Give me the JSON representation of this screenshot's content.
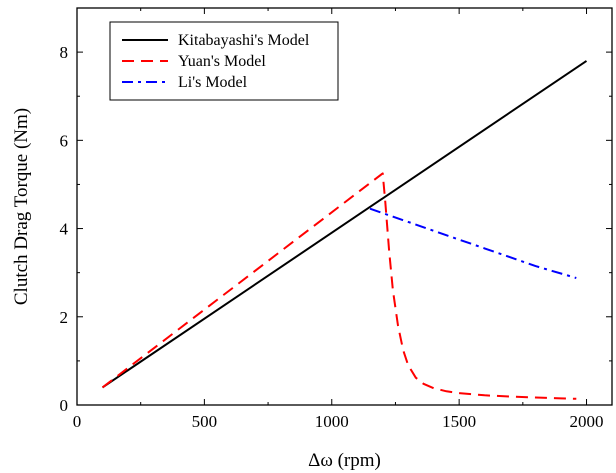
{
  "chart_data": {
    "type": "line",
    "xlabel": "Δω (rpm)",
    "ylabel": "Clutch Drag Torque  (Nm)",
    "xlim": [
      0,
      2100
    ],
    "ylim": [
      0,
      9
    ],
    "xticks": [
      0,
      500,
      1000,
      1500,
      2000
    ],
    "yticks": [
      0,
      2,
      4,
      6,
      8
    ],
    "xtick_labels": [
      "0",
      "500",
      "1000",
      "1500",
      "2000"
    ],
    "ytick_labels": [
      "0",
      "2",
      "4",
      "6",
      "8"
    ],
    "grid": false,
    "legend_position": "top-left",
    "series": [
      {
        "name": "Kitabayashi's Model",
        "color": "#000000",
        "dash": "solid",
        "x": [
          100,
          2000
        ],
        "y": [
          0.4,
          7.8
        ]
      },
      {
        "name": "Yuan's Model",
        "color": "#ff0000",
        "dash": "dashed",
        "x": [
          100,
          1200,
          1210,
          1225,
          1240,
          1260,
          1280,
          1300,
          1330,
          1360,
          1400,
          1450,
          1500,
          1600,
          1700,
          1800,
          1900,
          1960
        ],
        "y": [
          0.4,
          5.25,
          4.6,
          3.5,
          2.6,
          1.8,
          1.25,
          0.9,
          0.62,
          0.48,
          0.38,
          0.31,
          0.27,
          0.22,
          0.19,
          0.17,
          0.15,
          0.14
        ]
      },
      {
        "name": "Li's Model",
        "color": "#0000ff",
        "dash": "dashdot",
        "x": [
          1150,
          1200,
          1300,
          1400,
          1500,
          1600,
          1700,
          1800,
          1900,
          1960
        ],
        "y": [
          4.45,
          4.35,
          4.15,
          3.95,
          3.75,
          3.55,
          3.35,
          3.15,
          2.98,
          2.88
        ]
      }
    ]
  }
}
